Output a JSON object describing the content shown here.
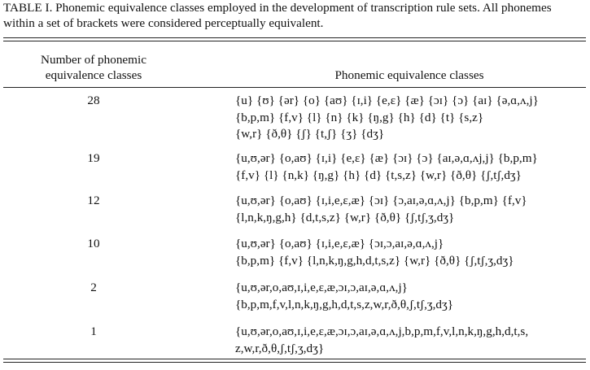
{
  "caption": "TABLE I. Phonemic equivalence classes employed in the development of transcription rule sets. All phonemes within a set of brackets were considered perceptually equivalent.",
  "headers": {
    "left_line1": "Number of phonemic",
    "left_line2": "equivalence classes",
    "right": "Phonemic equivalence classes"
  },
  "rows": [
    {
      "number": "28",
      "classes": "{u} {ʊ} {ər} {o} {aʊ} {ɪ,i} {e,ɛ} {æ} {ɔɪ} {ɔ} {aɪ} {ə,ɑ,ʌ,j}\n{b,p,m} {f,v} {l} {n} {k} {ŋ,g} {h} {d} {t} {s,z}\n{w,r} {ð,θ} {ʃ} {t,ʃ} {ʒ} {dʒ}"
    },
    {
      "number": "19",
      "classes": "{u,ʊ,ər} {o,aʊ} {ɪ,i} {e,ɛ} {æ} {ɔɪ} {ɔ} {aɪ,ə,ɑ,ʌj,j} {b,p,m}\n{f,v} {l} {n,k} {ŋ,g} {h} {d} {t,s,z} {w,r} {ð,θ} {ʃ,tʃ,dʒ}"
    },
    {
      "number": "12",
      "classes": "{u,ʊ,ər} {o,aʊ} {ɪ,i,e,ɛ,æ} {ɔɪ} {ɔ,aɪ,ə,ɑ,ʌ,j} {b,p,m} {f,v}\n{l,n,k,ŋ,g,h} {d,t,s,z} {w,r} {ð,θ} {ʃ,tʃ,ʒ,dʒ}"
    },
    {
      "number": "10",
      "classes": "{u,ʊ,ər} {o,aʊ} {ɪ,i,e,ɛ,æ} {ɔɪ,ɔ,aɪ,ə,ɑ,ʌ,j}\n{b,p,m} {f,v} {l,n,k,ŋ,g,h,d,t,s,z} {w,r} {ð,θ} {ʃ,tʃ,ʒ,dʒ}"
    },
    {
      "number": "2",
      "classes": "{u,ʊ,ər,o,aʊ,ɪ,i,e,ɛ,æ,ɔɪ,ɔ,aɪ,ə,ɑ,ʌ,j}\n{b,p,m,f,v,l,n,k,ŋ,g,h,d,t,s,z,w,r,ð,θ,ʃ,tʃ,ʒ,dʒ}"
    },
    {
      "number": "1",
      "classes": "{u,ʊ,ər,o,aʊ,ɪ,i,e,ɛ,æ,ɔɪ,ɔ,aɪ,ə,ɑ,ʌ,j,b,p,m,f,v,l,n,k,ŋ,g,h,d,t,s,\nz,w,r,ð,θ,ʃ,tʃ,ʒ,dʒ}"
    }
  ]
}
